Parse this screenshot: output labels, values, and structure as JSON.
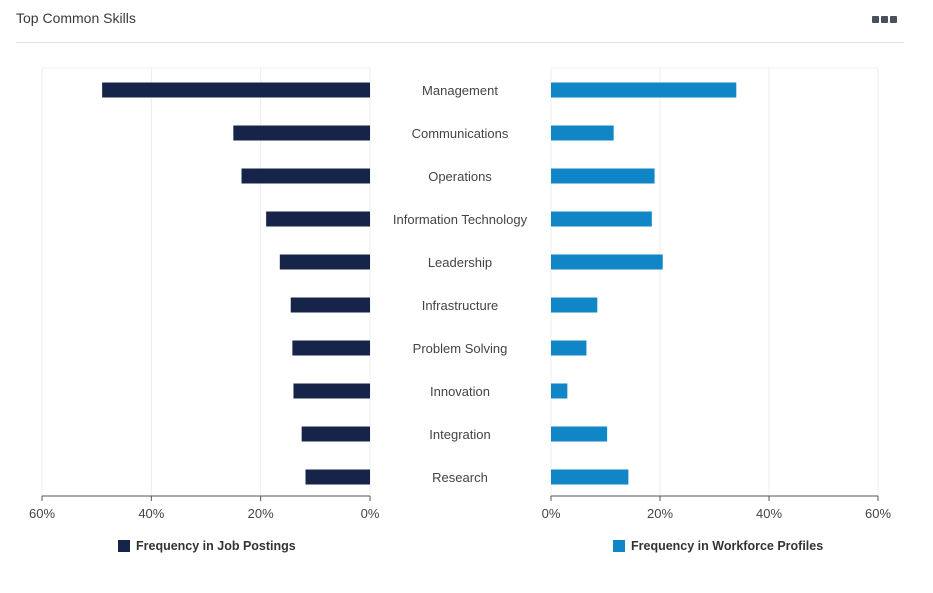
{
  "card": {
    "title": "Top Common Skills",
    "menu_icon": "more-horizontal-icon"
  },
  "chart_data": {
    "type": "bar",
    "orientation": "horizontal-butterfly",
    "categories": [
      "Management",
      "Communications",
      "Operations",
      "Information Technology",
      "Leadership",
      "Infrastructure",
      "Problem Solving",
      "Innovation",
      "Integration",
      "Research"
    ],
    "series": [
      {
        "name": "Frequency in Job Postings",
        "color": "#17244a",
        "values": [
          49,
          25,
          23.5,
          19,
          16.5,
          14.5,
          14.2,
          14,
          12.5,
          11.8
        ]
      },
      {
        "name": "Frequency in Workforce Profiles",
        "color": "#1186c6",
        "values": [
          34,
          11.5,
          19,
          18.5,
          20.5,
          8.5,
          6.5,
          3,
          10.3,
          14.2
        ]
      }
    ],
    "xlim": [
      0,
      60
    ],
    "xticks": [
      0,
      20,
      40,
      60
    ],
    "tick_labels": [
      "0%",
      "20%",
      "40%",
      "60%"
    ],
    "grid": true,
    "legend_position": "bottom"
  }
}
